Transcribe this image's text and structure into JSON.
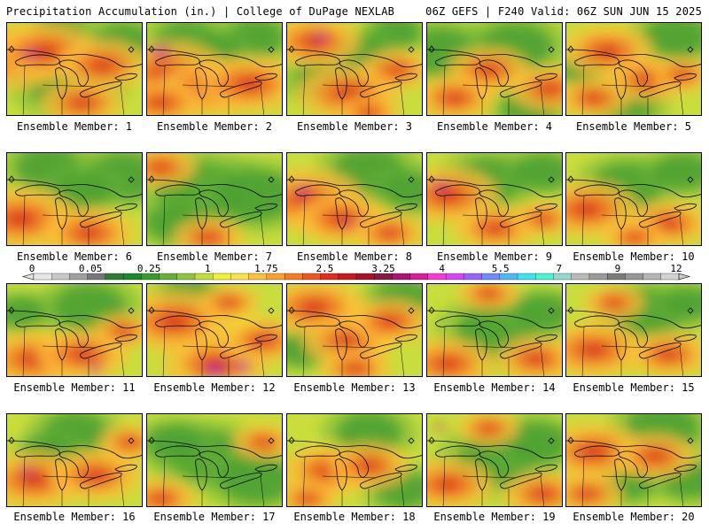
{
  "header": {
    "left": "Precipitation Accumulation (in.) | College of DuPage NEXLAB",
    "right": "06Z GEFS | F240 Valid: 06Z SUN JUN 15 2025"
  },
  "label_prefix": "Ensemble Member: ",
  "members": [
    {
      "number": 1,
      "wet": [
        [
          0.05,
          0.37,
          0.55
        ],
        [
          0.28,
          0.3,
          0.5
        ],
        [
          0.7,
          0.45,
          0.45
        ],
        [
          0.55,
          0.85,
          0.4
        ]
      ],
      "dry": [
        [
          0.45,
          0.65,
          0.5
        ],
        [
          0.85,
          0.2,
          0.35
        ],
        [
          0.4,
          0.1,
          0.3
        ]
      ],
      "extreme": [
        [
          0.18,
          0.33,
          0.12
        ]
      ]
    },
    {
      "number": 2,
      "wet": [
        [
          0.15,
          0.55,
          0.6
        ],
        [
          0.45,
          0.7,
          0.5
        ],
        [
          0.75,
          0.65,
          0.5
        ],
        [
          0.1,
          0.85,
          0.4
        ]
      ],
      "dry": [
        [
          0.3,
          0.2,
          0.4
        ],
        [
          0.8,
          0.15,
          0.35
        ],
        [
          0.5,
          0.3,
          0.3
        ]
      ],
      "extreme": [
        [
          0.1,
          0.3,
          0.15
        ]
      ]
    },
    {
      "number": 3,
      "wet": [
        [
          0.2,
          0.2,
          0.45
        ],
        [
          0.45,
          0.75,
          0.5
        ],
        [
          0.8,
          0.5,
          0.35
        ],
        [
          0.6,
          0.95,
          0.3
        ]
      ],
      "dry": [
        [
          0.3,
          0.6,
          0.4
        ],
        [
          0.8,
          0.1,
          0.3
        ],
        [
          0.55,
          0.3,
          0.3
        ]
      ],
      "extreme": [
        [
          0.25,
          0.15,
          0.12
        ]
      ]
    },
    {
      "number": 4,
      "wet": [
        [
          0.45,
          0.5,
          0.4
        ],
        [
          0.2,
          0.8,
          0.4
        ],
        [
          0.9,
          0.7,
          0.4
        ]
      ],
      "dry": [
        [
          0.1,
          0.3,
          0.45
        ],
        [
          0.65,
          0.25,
          0.45
        ],
        [
          0.75,
          0.9,
          0.35
        ]
      ],
      "extreme": []
    },
    {
      "number": 5,
      "wet": [
        [
          0.3,
          0.3,
          0.45
        ],
        [
          0.6,
          0.6,
          0.4
        ],
        [
          0.2,
          0.8,
          0.35
        ],
        [
          0.85,
          0.55,
          0.3
        ]
      ],
      "dry": [
        [
          0.8,
          0.15,
          0.4
        ],
        [
          0.45,
          0.85,
          0.35
        ],
        [
          0.1,
          0.5,
          0.25
        ]
      ],
      "extreme": []
    },
    {
      "number": 6,
      "wet": [
        [
          0.1,
          0.7,
          0.55
        ],
        [
          0.6,
          0.85,
          0.45
        ]
      ],
      "dry": [
        [
          0.3,
          0.15,
          0.4
        ],
        [
          0.85,
          0.25,
          0.45
        ],
        [
          0.55,
          0.4,
          0.35
        ]
      ],
      "extreme": []
    },
    {
      "number": 7,
      "wet": [
        [
          0.1,
          0.15,
          0.35
        ],
        [
          0.45,
          0.9,
          0.35
        ]
      ],
      "dry": [
        [
          0.4,
          0.4,
          0.55
        ],
        [
          0.8,
          0.45,
          0.5
        ],
        [
          0.2,
          0.75,
          0.35
        ]
      ],
      "extreme": []
    },
    {
      "number": 8,
      "wet": [
        [
          0.15,
          0.5,
          0.55
        ],
        [
          0.4,
          0.7,
          0.45
        ],
        [
          0.75,
          0.85,
          0.35
        ]
      ],
      "dry": [
        [
          0.6,
          0.2,
          0.45
        ],
        [
          0.9,
          0.4,
          0.35
        ]
      ],
      "extreme": [
        [
          0.12,
          0.4,
          0.12
        ],
        [
          0.45,
          0.75,
          0.08
        ]
      ]
    },
    {
      "number": 9,
      "wet": [
        [
          0.15,
          0.45,
          0.5
        ],
        [
          0.5,
          0.8,
          0.4
        ],
        [
          0.85,
          0.7,
          0.3
        ]
      ],
      "dry": [
        [
          0.45,
          0.3,
          0.45
        ],
        [
          0.85,
          0.2,
          0.35
        ]
      ],
      "extreme": [
        [
          0.1,
          0.35,
          0.12
        ]
      ]
    },
    {
      "number": 10,
      "wet": [
        [
          0.15,
          0.6,
          0.5
        ],
        [
          0.75,
          0.75,
          0.4
        ],
        [
          0.5,
          0.9,
          0.3
        ]
      ],
      "dry": [
        [
          0.45,
          0.35,
          0.45
        ],
        [
          0.85,
          0.2,
          0.35
        ]
      ],
      "extreme": []
    },
    {
      "number": 11,
      "wet": [
        [
          0.2,
          0.8,
          0.5
        ],
        [
          0.55,
          0.75,
          0.45
        ],
        [
          0.85,
          0.5,
          0.3
        ]
      ],
      "dry": [
        [
          0.6,
          0.25,
          0.45
        ],
        [
          0.1,
          0.3,
          0.3
        ]
      ],
      "extreme": [
        [
          0.65,
          0.9,
          0.1
        ]
      ]
    },
    {
      "number": 12,
      "wet": [
        [
          0.2,
          0.4,
          0.55
        ],
        [
          0.5,
          0.85,
          0.5
        ],
        [
          0.85,
          0.6,
          0.4
        ],
        [
          0.6,
          0.2,
          0.3
        ]
      ],
      "dry": [
        [
          0.3,
          0.1,
          0.3
        ]
      ],
      "extreme": [
        [
          0.5,
          0.92,
          0.18
        ],
        [
          0.7,
          0.88,
          0.14
        ]
      ]
    },
    {
      "number": 13,
      "wet": [
        [
          0.2,
          0.25,
          0.5
        ],
        [
          0.45,
          0.6,
          0.45
        ],
        [
          0.75,
          0.4,
          0.4
        ],
        [
          0.5,
          0.9,
          0.35
        ]
      ],
      "dry": [
        [
          0.85,
          0.15,
          0.35
        ],
        [
          0.1,
          0.7,
          0.3
        ]
      ],
      "extreme": []
    },
    {
      "number": 14,
      "wet": [
        [
          0.15,
          0.85,
          0.45
        ],
        [
          0.8,
          0.8,
          0.4
        ],
        [
          0.45,
          0.1,
          0.3
        ]
      ],
      "dry": [
        [
          0.5,
          0.5,
          0.5
        ],
        [
          0.85,
          0.3,
          0.35
        ]
      ],
      "extreme": []
    },
    {
      "number": 15,
      "wet": [
        [
          0.2,
          0.7,
          0.5
        ],
        [
          0.75,
          0.75,
          0.4
        ],
        [
          0.35,
          0.2,
          0.3
        ]
      ],
      "dry": [
        [
          0.6,
          0.3,
          0.45
        ],
        [
          0.9,
          0.2,
          0.3
        ]
      ],
      "extreme": []
    },
    {
      "number": 16,
      "wet": [
        [
          0.2,
          0.7,
          0.5
        ],
        [
          0.65,
          0.65,
          0.45
        ],
        [
          0.9,
          0.3,
          0.3
        ]
      ],
      "dry": [
        [
          0.5,
          0.2,
          0.4
        ],
        [
          0.3,
          0.4,
          0.3
        ]
      ],
      "extreme": [
        [
          0.15,
          0.6,
          0.1
        ]
      ]
    },
    {
      "number": 17,
      "wet": [
        [
          0.1,
          0.9,
          0.35
        ],
        [
          0.85,
          0.3,
          0.3
        ]
      ],
      "dry": [
        [
          0.45,
          0.45,
          0.5
        ],
        [
          0.8,
          0.7,
          0.45
        ],
        [
          0.2,
          0.3,
          0.35
        ]
      ],
      "extreme": []
    },
    {
      "number": 18,
      "wet": [
        [
          0.3,
          0.6,
          0.45
        ],
        [
          0.6,
          0.55,
          0.4
        ],
        [
          0.15,
          0.9,
          0.3
        ]
      ],
      "dry": [
        [
          0.6,
          0.2,
          0.4
        ],
        [
          0.85,
          0.8,
          0.35
        ]
      ],
      "extreme": []
    },
    {
      "number": 19,
      "wet": [
        [
          0.15,
          0.75,
          0.45
        ],
        [
          0.85,
          0.85,
          0.4
        ],
        [
          0.45,
          0.15,
          0.3
        ]
      ],
      "dry": [
        [
          0.5,
          0.5,
          0.5
        ],
        [
          0.8,
          0.3,
          0.4
        ]
      ],
      "extreme": [
        [
          0.1,
          0.15,
          0.08
        ]
      ]
    },
    {
      "number": 20,
      "wet": [
        [
          0.2,
          0.4,
          0.5
        ],
        [
          0.65,
          0.45,
          0.4
        ],
        [
          0.15,
          0.85,
          0.35
        ]
      ],
      "dry": [
        [
          0.7,
          0.15,
          0.45
        ],
        [
          0.9,
          0.7,
          0.35
        ],
        [
          0.45,
          0.75,
          0.3
        ]
      ],
      "extreme": []
    }
  ],
  "colorbar": {
    "ticks": [
      "0",
      "0.05",
      "0.25",
      "1",
      "1.75",
      "2.5",
      "3.25",
      "4",
      "5.5",
      "7",
      "9",
      "12"
    ],
    "colors": [
      "#e6e6e6",
      "#c8c8c8",
      "#a0a0a0",
      "#787878",
      "#2e7d32",
      "#1b8a2a",
      "#3a9b2d",
      "#64b038",
      "#8cc63f",
      "#c4dc3c",
      "#f2f232",
      "#fde34a",
      "#fbc23a",
      "#f8a32e",
      "#f47d24",
      "#ee5620",
      "#e32d1c",
      "#c81a20",
      "#a5142b",
      "#841b45",
      "#a91572",
      "#d51c9c",
      "#f73ad6",
      "#d646f5",
      "#9a62f6",
      "#6d8ef6",
      "#4fb8f2",
      "#3de4f0",
      "#46f6d6",
      "#9bd6cc",
      "#b9b9b9",
      "#9a9a9a",
      "#7c7c7c",
      "#969696",
      "#b4b4b4",
      "#d2d2d2"
    ]
  }
}
